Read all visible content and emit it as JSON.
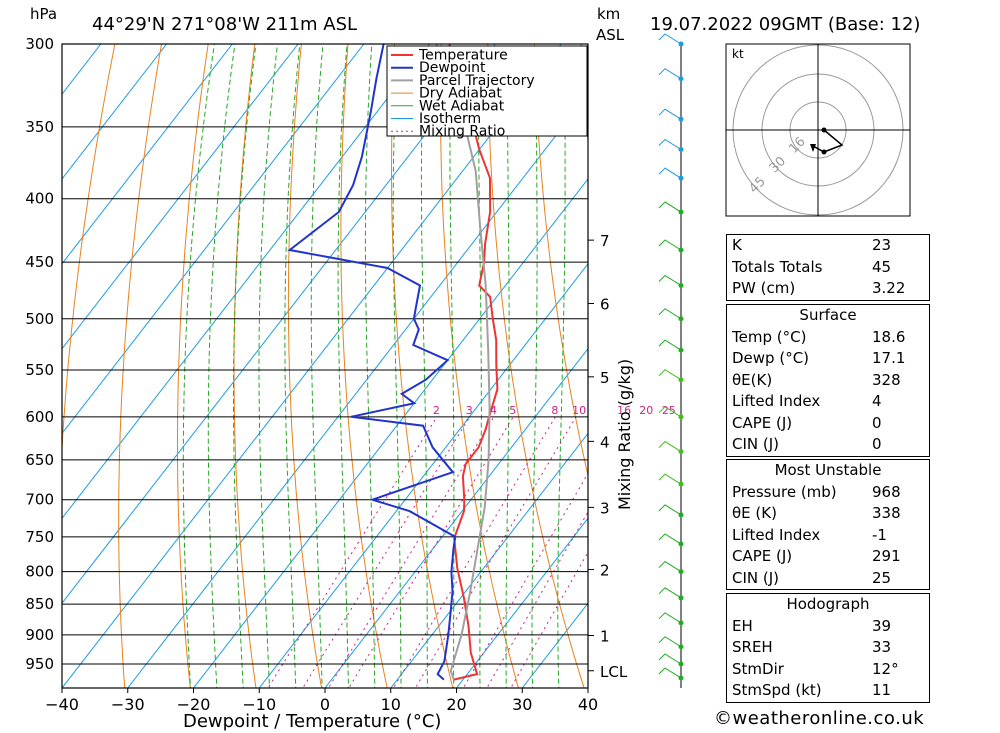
{
  "header": {
    "location": "44°29'N  271°08'W  211m  ASL",
    "datetime": "19.07.2022  09GMT  (Base: 12)",
    "pressure_unit": "hPa",
    "km_label": "km",
    "asl_label": "ASL"
  },
  "chart_data": {
    "type": "line",
    "title": "44°29'N  271°08'W  211m  ASL",
    "xlabel": "Dewpoint / Temperature (°C)",
    "ylabel": "hPa",
    "secondary_ylabel": "Mixing Ratio (g/kg)",
    "xlim": [
      -40,
      40
    ],
    "ylim_hpa": [
      985,
      300
    ],
    "x_ticks": [
      "−40",
      "−30",
      "−20",
      "−10",
      "0",
      "10",
      "20",
      "30",
      "40"
    ],
    "x_tick_values": [
      -40,
      -30,
      -20,
      -10,
      0,
      10,
      20,
      30,
      40
    ],
    "pressure_ticks": [
      300,
      350,
      400,
      450,
      500,
      550,
      600,
      650,
      700,
      750,
      800,
      850,
      900,
      950
    ],
    "km_ticks": [
      {
        "label": "7",
        "p": 432
      },
      {
        "label": "6",
        "p": 486
      },
      {
        "label": "5",
        "p": 557
      },
      {
        "label": "4",
        "p": 628
      },
      {
        "label": "3",
        "p": 710
      },
      {
        "label": "2",
        "p": 797
      },
      {
        "label": "1",
        "p": 901
      },
      {
        "label": "LCL",
        "p": 962
      }
    ],
    "mixing_ratio_labels": [
      "2",
      "3",
      "4",
      "5",
      "8",
      "10",
      "16",
      "20",
      "25"
    ],
    "mixing_ratio_values": [
      2,
      3,
      4,
      5,
      8,
      10,
      16,
      20,
      25
    ],
    "legend": [
      "Temperature",
      "Dewpoint",
      "Parcel Trajectory",
      "Dry Adiabat",
      "Wet Adiabat",
      "Isotherm",
      "Mixing Ratio"
    ],
    "legend_position": "top-right",
    "series": [
      {
        "name": "Temperature",
        "color": "#ee3333",
        "points": [
          [
            18.6,
            978
          ],
          [
            21.5,
            968
          ],
          [
            18,
            930
          ],
          [
            14.5,
            885
          ],
          [
            10.5,
            840
          ],
          [
            6,
            795
          ],
          [
            2,
            752
          ],
          [
            0.3,
            715
          ],
          [
            -1,
            700
          ],
          [
            -4,
            670
          ],
          [
            -5,
            655
          ],
          [
            -5,
            635
          ],
          [
            -6,
            615
          ],
          [
            -7,
            600
          ],
          [
            -9,
            570
          ],
          [
            -12,
            545
          ],
          [
            -15,
            520
          ],
          [
            -18,
            500
          ],
          [
            -21,
            480
          ],
          [
            -24,
            470
          ],
          [
            -26,
            450
          ],
          [
            -28,
            435
          ],
          [
            -31,
            410
          ],
          [
            -35,
            385
          ],
          [
            -40,
            365
          ],
          [
            -46,
            340
          ],
          [
            -54,
            310
          ],
          [
            -57,
            300
          ]
        ]
      },
      {
        "name": "Dewpoint",
        "color": "#2233cc",
        "points": [
          [
            17.1,
            978
          ],
          [
            15.5,
            968
          ],
          [
            15,
            945
          ],
          [
            12.5,
            900
          ],
          [
            10,
            860
          ],
          [
            8,
            830
          ],
          [
            5.5,
            800
          ],
          [
            3,
            765
          ],
          [
            2,
            750
          ],
          [
            -8,
            715
          ],
          [
            -15,
            700
          ],
          [
            -6,
            665
          ],
          [
            -12,
            635
          ],
          [
            -16,
            610
          ],
          [
            -28,
            600
          ],
          [
            -20,
            585
          ],
          [
            -23,
            575
          ],
          [
            -21,
            560
          ],
          [
            -20,
            540
          ],
          [
            -27,
            525
          ],
          [
            -28,
            510
          ],
          [
            -30,
            500
          ],
          [
            -31,
            490
          ],
          [
            -33,
            470
          ],
          [
            -40,
            455
          ],
          [
            -57,
            440
          ],
          [
            -54,
            410
          ],
          [
            -55,
            390
          ],
          [
            -57,
            370
          ],
          [
            -61,
            340
          ],
          [
            -64,
            320
          ],
          [
            -67,
            300
          ]
        ]
      },
      {
        "name": "Parcel Trajectory",
        "color": "#a0a0a0",
        "points": [
          [
            18.6,
            978
          ],
          [
            17.1,
            962
          ],
          [
            14.5,
            900
          ],
          [
            11,
            835
          ],
          [
            7,
            770
          ],
          [
            3,
            710
          ],
          [
            -2,
            650
          ],
          [
            -8,
            590
          ],
          [
            -15,
            530
          ],
          [
            -23,
            470
          ],
          [
            -31,
            420
          ],
          [
            -38,
            380
          ],
          [
            -46,
            345
          ],
          [
            -56,
            310
          ],
          [
            -59,
            300
          ]
        ]
      }
    ]
  },
  "hodograph": {
    "unit": "kt",
    "ring_labels": [
      "16",
      "30",
      "45"
    ]
  },
  "indices": [
    {
      "label": "K",
      "value": "23"
    },
    {
      "label": "Totals Totals",
      "value": "45"
    },
    {
      "label": "PW (cm)",
      "value": "3.22"
    }
  ],
  "surface": {
    "title": "Surface",
    "rows": [
      {
        "label": "Temp (°C)",
        "value": "18.6"
      },
      {
        "label": "Dewp (°C)",
        "value": "17.1"
      },
      {
        "label": "θE(K)",
        "value": "328"
      },
      {
        "label": "Lifted Index",
        "value": "4"
      },
      {
        "label": "CAPE (J)",
        "value": "0"
      },
      {
        "label": "CIN (J)",
        "value": "0"
      }
    ]
  },
  "most_unstable": {
    "title": "Most Unstable",
    "rows": [
      {
        "label": "Pressure (mb)",
        "value": "968"
      },
      {
        "label": "θE (K)",
        "value": "338"
      },
      {
        "label": "Lifted Index",
        "value": "-1"
      },
      {
        "label": "CAPE (J)",
        "value": "291"
      },
      {
        "label": "CIN (J)",
        "value": "25"
      }
    ]
  },
  "hodograph_table": {
    "title": "Hodograph",
    "rows": [
      {
        "label": "EH",
        "value": "39"
      },
      {
        "label": "SREH",
        "value": "33"
      },
      {
        "label": "StmDir",
        "value": "12°"
      },
      {
        "label": "StmSpd (kt)",
        "value": "11"
      }
    ]
  },
  "copyright": "©weatheronline.co.uk",
  "colors": {
    "temperature": "#ee3333",
    "dewpoint": "#2233cc",
    "parcel": "#a0a0a0",
    "dry_adiabat": "#e8821e",
    "wet_adiabat": "#22aa22",
    "isotherm": "#1e9be0",
    "mixing_ratio": "#cc2288"
  }
}
